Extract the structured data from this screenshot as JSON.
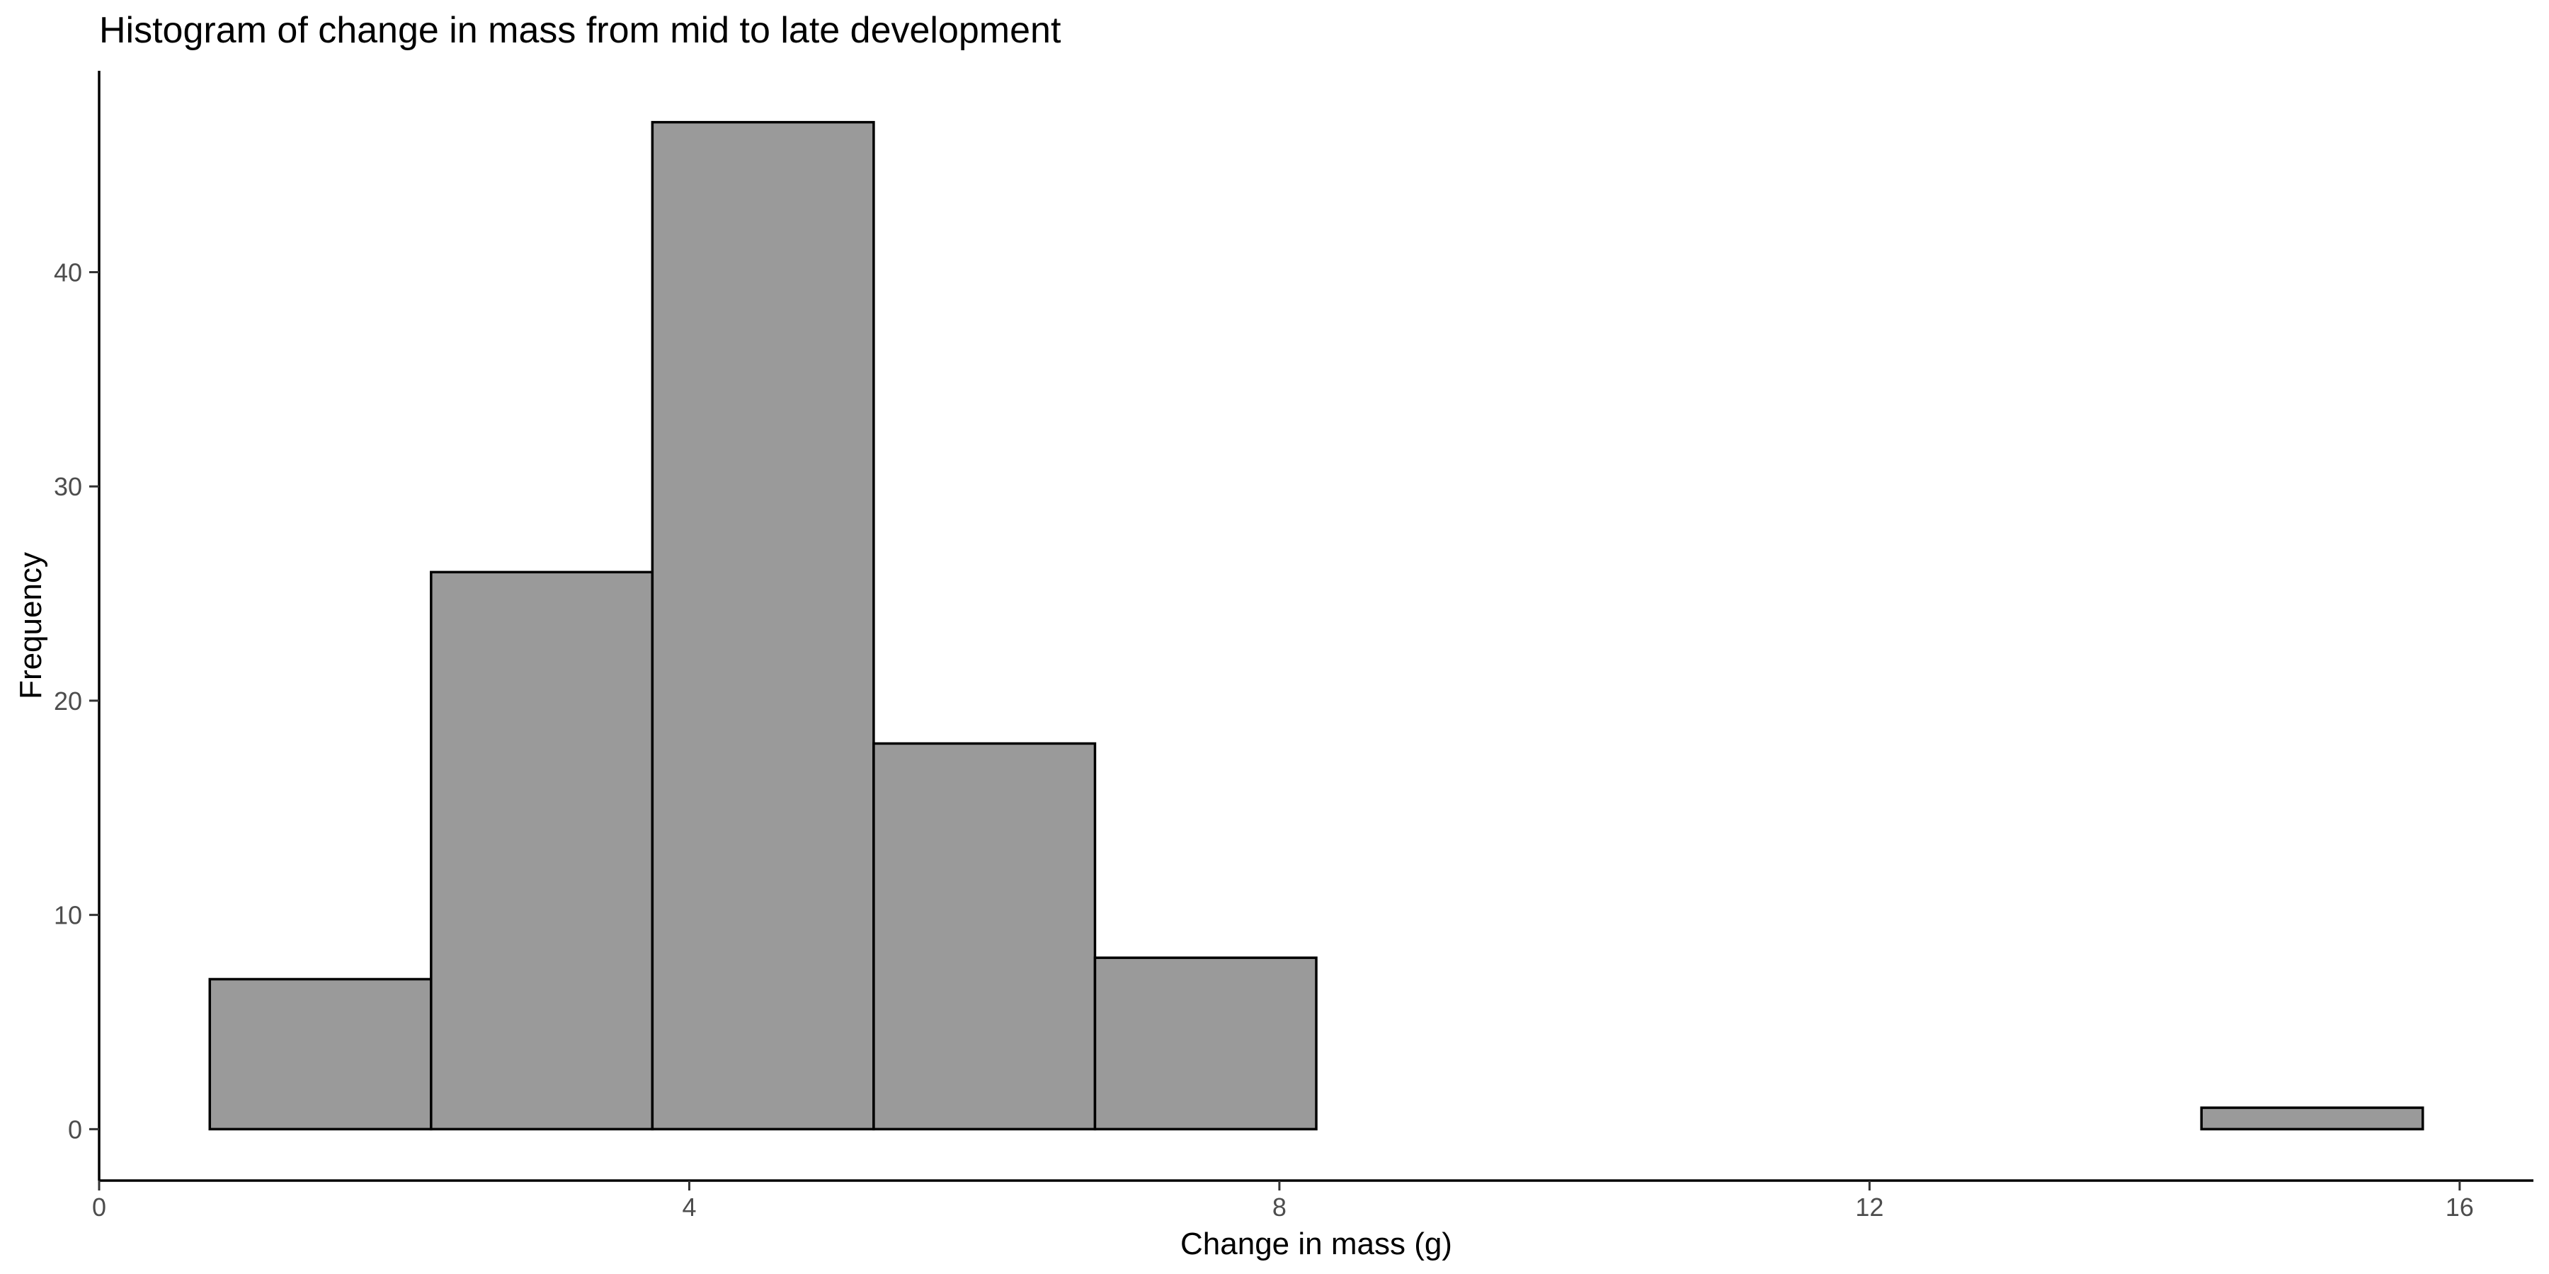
{
  "chart_data": {
    "type": "bar",
    "subtype": "histogram",
    "title": "Histogram of change in mass from mid to late development",
    "xlabel": "Change in mass (g)",
    "ylabel": "Frequency",
    "xlim": [
      0,
      16.5
    ],
    "ylim": [
      -2.4,
      49.4
    ],
    "xticks": [
      0,
      4,
      8,
      12,
      16
    ],
    "yticks": [
      0,
      10,
      20,
      30,
      40
    ],
    "bin_width": 1.5,
    "bins": [
      {
        "start": 0.75,
        "end": 2.25,
        "count": 7
      },
      {
        "start": 2.25,
        "end": 3.75,
        "count": 26
      },
      {
        "start": 3.75,
        "end": 5.25,
        "count": 47
      },
      {
        "start": 5.25,
        "end": 6.75,
        "count": 18
      },
      {
        "start": 6.75,
        "end": 8.25,
        "count": 8
      },
      {
        "start": 8.25,
        "end": 9.75,
        "count": 0
      },
      {
        "start": 9.75,
        "end": 11.25,
        "count": 0
      },
      {
        "start": 11.25,
        "end": 12.75,
        "count": 0
      },
      {
        "start": 12.75,
        "end": 14.25,
        "count": 0
      },
      {
        "start": 14.25,
        "end": 15.75,
        "count": 1
      }
    ],
    "grid": false,
    "legend": "none",
    "bar_fill": "#9a9a9a",
    "bar_stroke": "#000000"
  }
}
